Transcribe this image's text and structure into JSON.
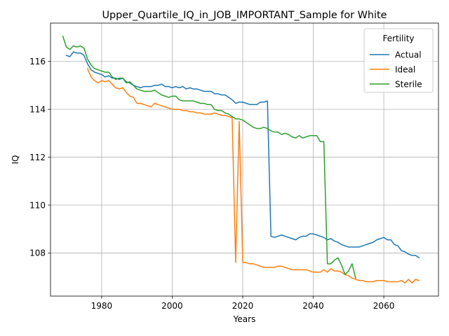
{
  "chart_data": {
    "type": "line",
    "title": "Upper_Quartile_IQ_in_JOB_IMPORTANT_Sample for White",
    "xlabel": "Years",
    "ylabel": "IQ",
    "xlim": [
      1965.5,
      2075.5
    ],
    "ylim": [
      106.2,
      117.6
    ],
    "xticks": [
      1980,
      2000,
      2020,
      2040,
      2060
    ],
    "yticks": [
      108,
      110,
      112,
      114,
      116
    ],
    "grid": true,
    "legend": {
      "title": "Fertility",
      "placement": "top-right"
    },
    "series": [
      {
        "name": "Actual",
        "color": "#1f77b4",
        "points": [
          [
            1970,
            116.25
          ],
          [
            1971,
            116.2
          ],
          [
            1972,
            116.4
          ],
          [
            1973,
            116.35
          ],
          [
            1974,
            116.35
          ],
          [
            1975,
            116.25
          ],
          [
            1976,
            115.9
          ],
          [
            1977,
            115.65
          ],
          [
            1978,
            115.55
          ],
          [
            1979,
            115.5
          ],
          [
            1980,
            115.45
          ],
          [
            1981,
            115.35
          ],
          [
            1982,
            115.4
          ],
          [
            1983,
            115.3
          ],
          [
            1984,
            115.3
          ],
          [
            1985,
            115.25
          ],
          [
            1986,
            115.3
          ],
          [
            1987,
            115.15
          ],
          [
            1988,
            115.1
          ],
          [
            1989,
            115.0
          ],
          [
            1990,
            114.95
          ],
          [
            1991,
            114.9
          ],
          [
            1992,
            114.95
          ],
          [
            1993,
            114.95
          ],
          [
            1994,
            114.95
          ],
          [
            1995,
            115.0
          ],
          [
            1996,
            115.0
          ],
          [
            1997,
            115.05
          ],
          [
            1998,
            114.95
          ],
          [
            1999,
            114.95
          ],
          [
            2000,
            114.9
          ],
          [
            2001,
            114.95
          ],
          [
            2002,
            114.9
          ],
          [
            2003,
            114.95
          ],
          [
            2004,
            114.85
          ],
          [
            2005,
            114.9
          ],
          [
            2006,
            114.85
          ],
          [
            2007,
            114.85
          ],
          [
            2008,
            114.8
          ],
          [
            2009,
            114.75
          ],
          [
            2010,
            114.75
          ],
          [
            2011,
            114.75
          ],
          [
            2012,
            114.65
          ],
          [
            2013,
            114.65
          ],
          [
            2014,
            114.6
          ],
          [
            2015,
            114.6
          ],
          [
            2016,
            114.5
          ],
          [
            2017,
            114.4
          ],
          [
            2018,
            114.25
          ],
          [
            2019,
            114.3
          ],
          [
            2020,
            114.3
          ],
          [
            2021,
            114.25
          ],
          [
            2022,
            114.2
          ],
          [
            2023,
            114.2
          ],
          [
            2024,
            114.2
          ],
          [
            2025,
            114.3
          ],
          [
            2026,
            114.3
          ],
          [
            2027,
            114.35
          ],
          [
            2028,
            108.7
          ],
          [
            2029,
            108.65
          ],
          [
            2030,
            108.7
          ],
          [
            2031,
            108.75
          ],
          [
            2032,
            108.7
          ],
          [
            2033,
            108.65
          ],
          [
            2034,
            108.6
          ],
          [
            2035,
            108.55
          ],
          [
            2036,
            108.65
          ],
          [
            2037,
            108.7
          ],
          [
            2038,
            108.7
          ],
          [
            2039,
            108.8
          ],
          [
            2040,
            108.8
          ],
          [
            2041,
            108.75
          ],
          [
            2042,
            108.7
          ],
          [
            2043,
            108.65
          ],
          [
            2044,
            108.55
          ],
          [
            2045,
            108.6
          ],
          [
            2046,
            108.5
          ],
          [
            2047,
            108.45
          ],
          [
            2048,
            108.35
          ],
          [
            2049,
            108.3
          ],
          [
            2050,
            108.25
          ],
          [
            2051,
            108.25
          ],
          [
            2052,
            108.25
          ],
          [
            2053,
            108.25
          ],
          [
            2054,
            108.3
          ],
          [
            2055,
            108.35
          ],
          [
            2056,
            108.4
          ],
          [
            2057,
            108.45
          ],
          [
            2058,
            108.55
          ],
          [
            2059,
            108.6
          ],
          [
            2060,
            108.65
          ],
          [
            2061,
            108.55
          ],
          [
            2062,
            108.55
          ],
          [
            2063,
            108.35
          ],
          [
            2064,
            108.3
          ],
          [
            2065,
            108.1
          ],
          [
            2066,
            108.05
          ],
          [
            2067,
            107.95
          ],
          [
            2068,
            107.9
          ],
          [
            2069,
            107.9
          ],
          [
            2070,
            107.8
          ]
        ]
      },
      {
        "name": "Ideal",
        "color": "#ff7f0e",
        "points": [
          [
            1976,
            115.7
          ],
          [
            1977,
            115.35
          ],
          [
            1978,
            115.2
          ],
          [
            1979,
            115.1
          ],
          [
            1980,
            115.2
          ],
          [
            1981,
            115.15
          ],
          [
            1982,
            115.2
          ],
          [
            1983,
            115.05
          ],
          [
            1984,
            114.9
          ],
          [
            1985,
            114.85
          ],
          [
            1986,
            114.9
          ],
          [
            1987,
            114.7
          ],
          [
            1988,
            114.55
          ],
          [
            1989,
            114.5
          ],
          [
            1990,
            114.25
          ],
          [
            1991,
            114.25
          ],
          [
            1992,
            114.2
          ],
          [
            1993,
            114.15
          ],
          [
            1994,
            114.1
          ],
          [
            1995,
            114.25
          ],
          [
            1996,
            114.2
          ],
          [
            1997,
            114.15
          ],
          [
            1998,
            114.1
          ],
          [
            1999,
            114.05
          ],
          [
            2000,
            114.0
          ],
          [
            2001,
            114.0
          ],
          [
            2002,
            114.0
          ],
          [
            2003,
            113.95
          ],
          [
            2004,
            113.95
          ],
          [
            2005,
            113.9
          ],
          [
            2006,
            113.9
          ],
          [
            2007,
            113.85
          ],
          [
            2008,
            113.85
          ],
          [
            2009,
            113.8
          ],
          [
            2010,
            113.8
          ],
          [
            2011,
            113.8
          ],
          [
            2012,
            113.85
          ],
          [
            2013,
            113.8
          ],
          [
            2014,
            113.75
          ],
          [
            2015,
            113.75
          ],
          [
            2016,
            113.7
          ],
          [
            2017,
            113.65
          ],
          [
            2018,
            107.6
          ],
          [
            2019,
            113.5
          ],
          [
            2020,
            107.6
          ],
          [
            2021,
            107.6
          ],
          [
            2022,
            107.55
          ],
          [
            2023,
            107.55
          ],
          [
            2024,
            107.5
          ],
          [
            2025,
            107.45
          ],
          [
            2026,
            107.4
          ],
          [
            2027,
            107.4
          ],
          [
            2028,
            107.4
          ],
          [
            2029,
            107.4
          ],
          [
            2030,
            107.45
          ],
          [
            2031,
            107.45
          ],
          [
            2032,
            107.4
          ],
          [
            2033,
            107.35
          ],
          [
            2034,
            107.3
          ],
          [
            2035,
            107.3
          ],
          [
            2036,
            107.3
          ],
          [
            2037,
            107.3
          ],
          [
            2038,
            107.3
          ],
          [
            2039,
            107.25
          ],
          [
            2040,
            107.2
          ],
          [
            2041,
            107.2
          ],
          [
            2042,
            107.2
          ],
          [
            2043,
            107.3
          ],
          [
            2044,
            107.2
          ],
          [
            2045,
            107.35
          ],
          [
            2046,
            107.25
          ],
          [
            2047,
            107.25
          ],
          [
            2048,
            107.2
          ],
          [
            2049,
            107.1
          ],
          [
            2050,
            107.05
          ],
          [
            2051,
            106.95
          ],
          [
            2052,
            106.9
          ],
          [
            2053,
            106.85
          ],
          [
            2054,
            106.85
          ],
          [
            2055,
            106.8
          ],
          [
            2056,
            106.8
          ],
          [
            2057,
            106.8
          ],
          [
            2058,
            106.85
          ],
          [
            2059,
            106.85
          ],
          [
            2060,
            106.85
          ],
          [
            2061,
            106.8
          ],
          [
            2062,
            106.8
          ],
          [
            2063,
            106.8
          ],
          [
            2064,
            106.8
          ],
          [
            2065,
            106.85
          ],
          [
            2066,
            106.75
          ],
          [
            2067,
            106.9
          ],
          [
            2068,
            106.75
          ],
          [
            2069,
            106.9
          ],
          [
            2070,
            106.85
          ]
        ]
      },
      {
        "name": "Sterile",
        "color": "#2ca02c",
        "points": [
          [
            1969,
            117.05
          ],
          [
            1970,
            116.6
          ],
          [
            1971,
            116.5
          ],
          [
            1972,
            116.65
          ],
          [
            1973,
            116.6
          ],
          [
            1974,
            116.65
          ],
          [
            1975,
            116.55
          ],
          [
            1976,
            116.1
          ],
          [
            1977,
            115.85
          ],
          [
            1978,
            115.7
          ],
          [
            1979,
            115.65
          ],
          [
            1980,
            115.6
          ],
          [
            1981,
            115.55
          ],
          [
            1982,
            115.55
          ],
          [
            1983,
            115.35
          ],
          [
            1984,
            115.25
          ],
          [
            1985,
            115.3
          ],
          [
            1986,
            115.3
          ],
          [
            1987,
            115.1
          ],
          [
            1988,
            115.15
          ],
          [
            1989,
            115.0
          ],
          [
            1990,
            114.85
          ],
          [
            1991,
            114.8
          ],
          [
            1992,
            114.75
          ],
          [
            1993,
            114.75
          ],
          [
            1994,
            114.75
          ],
          [
            1995,
            114.8
          ],
          [
            1996,
            114.7
          ],
          [
            1997,
            114.6
          ],
          [
            1998,
            114.55
          ],
          [
            1999,
            114.5
          ],
          [
            2000,
            114.55
          ],
          [
            2001,
            114.55
          ],
          [
            2002,
            114.4
          ],
          [
            2003,
            114.35
          ],
          [
            2004,
            114.35
          ],
          [
            2005,
            114.35
          ],
          [
            2006,
            114.35
          ],
          [
            2007,
            114.3
          ],
          [
            2008,
            114.25
          ],
          [
            2009,
            114.25
          ],
          [
            2010,
            114.2
          ],
          [
            2011,
            114.2
          ],
          [
            2012,
            114.0
          ],
          [
            2013,
            113.95
          ],
          [
            2014,
            113.95
          ],
          [
            2015,
            113.85
          ],
          [
            2016,
            113.8
          ],
          [
            2017,
            113.7
          ],
          [
            2018,
            113.6
          ],
          [
            2019,
            113.6
          ],
          [
            2020,
            113.55
          ],
          [
            2021,
            113.45
          ],
          [
            2022,
            113.35
          ],
          [
            2023,
            113.25
          ],
          [
            2024,
            113.2
          ],
          [
            2025,
            113.2
          ],
          [
            2026,
            113.25
          ],
          [
            2027,
            113.2
          ],
          [
            2028,
            113.1
          ],
          [
            2029,
            113.05
          ],
          [
            2030,
            113.05
          ],
          [
            2031,
            112.95
          ],
          [
            2032,
            113.0
          ],
          [
            2033,
            112.95
          ],
          [
            2034,
            112.85
          ],
          [
            2035,
            112.8
          ],
          [
            2036,
            112.9
          ],
          [
            2037,
            112.8
          ],
          [
            2038,
            112.85
          ],
          [
            2039,
            112.9
          ],
          [
            2040,
            112.9
          ],
          [
            2041,
            112.9
          ],
          [
            2042,
            112.65
          ],
          [
            2043,
            112.65
          ],
          [
            2044,
            107.55
          ],
          [
            2045,
            107.55
          ],
          [
            2046,
            107.7
          ],
          [
            2047,
            107.8
          ],
          [
            2048,
            107.5
          ],
          [
            2049,
            107.1
          ],
          [
            2050,
            107.25
          ],
          [
            2051,
            107.55
          ],
          [
            2052,
            106.95
          ]
        ]
      }
    ]
  }
}
